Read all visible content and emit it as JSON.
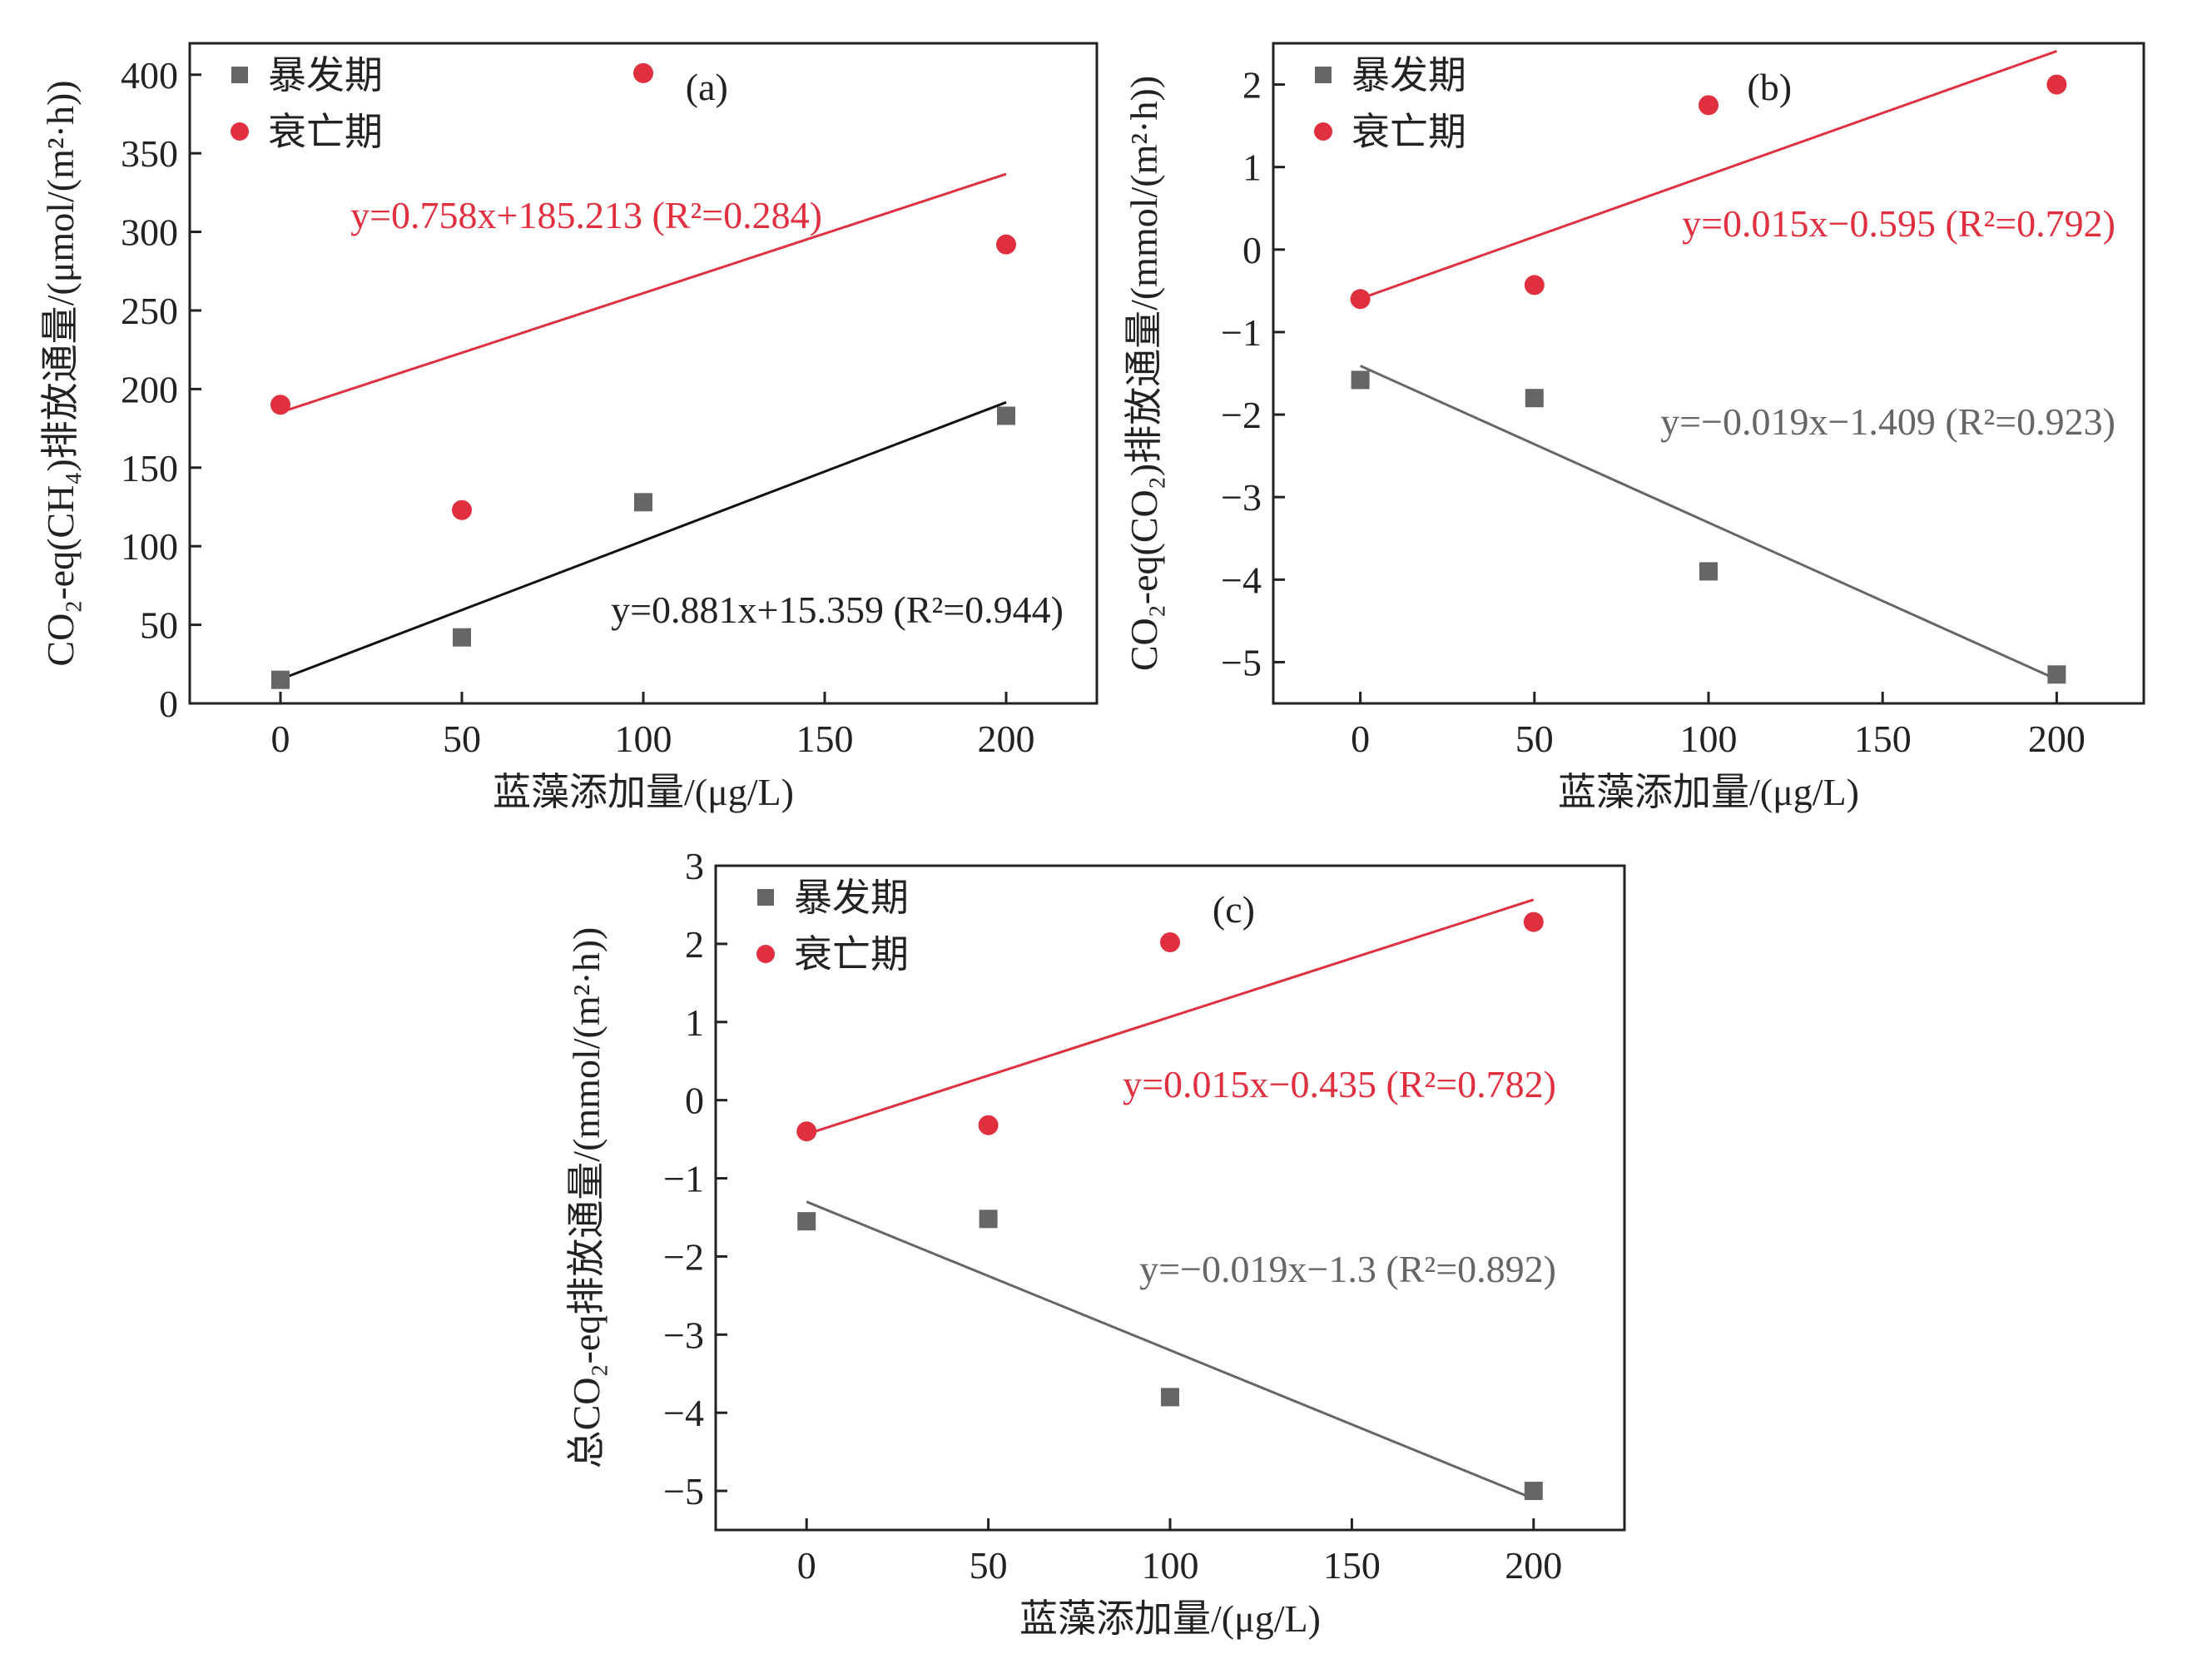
{
  "colors": {
    "bloom": "#666666",
    "decline": "#e03040",
    "text": "#222222"
  },
  "chart_data": [
    {
      "type": "scatter",
      "panel_label": "(a)",
      "xlabel": "蓝藻添加量/(μg/L)",
      "ylabel": "CO₂-eq(CH₄)排放通量/(μmol/(m²·h))",
      "xlim": [
        -25,
        225
      ],
      "ylim": [
        0,
        420
      ],
      "xticks": [
        "0",
        "50",
        "100",
        "150",
        "200"
      ],
      "yticks": [
        "0",
        "50",
        "100",
        "150",
        "200",
        "250",
        "300",
        "350",
        "400"
      ],
      "grid": false,
      "legend_position": "top-left",
      "series": [
        {
          "name": "暴发期",
          "marker": "square",
          "color": "#666666",
          "fit_color": "#111111",
          "points": [
            [
              0,
              15
            ],
            [
              50,
              42
            ],
            [
              100,
              128
            ],
            [
              200,
              183
            ]
          ],
          "fit": {
            "slope": 0.881,
            "intercept": 15.359,
            "label": "y=0.881x+15.359 (R²=0.944)"
          }
        },
        {
          "name": "衰亡期",
          "marker": "circle",
          "color": "#e03040",
          "fit_color": "#e03040",
          "points": [
            [
              0,
              190
            ],
            [
              50,
              123
            ],
            [
              100,
              401
            ],
            [
              200,
              292
            ]
          ],
          "fit": {
            "slope": 0.758,
            "intercept": 185.213,
            "label": "y=0.758x+185.213 (R²=0.284)"
          }
        }
      ]
    },
    {
      "type": "scatter",
      "panel_label": "(b)",
      "xlabel": "蓝藻添加量/(μg/L)",
      "ylabel": "CO₂-eq(CO₂)排放通量/(mmol/(m²·h))",
      "xlim": [
        -25,
        225
      ],
      "ylim": [
        -5.5,
        2.5
      ],
      "xticks": [
        "0",
        "50",
        "100",
        "150",
        "200"
      ],
      "yticks": [
        "-5",
        "-4",
        "-3",
        "-2",
        "-1",
        "0",
        "1",
        "2"
      ],
      "grid": false,
      "legend_position": "top-left",
      "series": [
        {
          "name": "暴发期",
          "marker": "square",
          "color": "#666666",
          "fit_color": "#666666",
          "points": [
            [
              0,
              -1.58
            ],
            [
              50,
              -1.8
            ],
            [
              100,
              -3.9
            ],
            [
              200,
              -5.15
            ]
          ],
          "fit": {
            "slope": -0.019,
            "intercept": -1.409,
            "label": "y=−0.019x−1.409 (R²=0.923)"
          }
        },
        {
          "name": "衰亡期",
          "marker": "circle",
          "color": "#e03040",
          "fit_color": "#e03040",
          "points": [
            [
              0,
              -0.6
            ],
            [
              50,
              -0.43
            ],
            [
              100,
              1.75
            ],
            [
              200,
              2.0
            ]
          ],
          "fit": {
            "slope": 0.015,
            "intercept": -0.595,
            "label": "y=0.015x−0.595 (R²=0.792)"
          }
        }
      ]
    },
    {
      "type": "scatter",
      "panel_label": "(c)",
      "xlabel": "蓝藻添加量/(μg/L)",
      "ylabel": "总CO₂-eq排放通量/(mmol/(m²·h))",
      "xlim": [
        -25,
        225
      ],
      "ylim": [
        -5.5,
        3
      ],
      "xticks": [
        "0",
        "50",
        "100",
        "150",
        "200"
      ],
      "yticks": [
        "-5",
        "-4",
        "-3",
        "-2",
        "-1",
        "0",
        "1",
        "2",
        "3"
      ],
      "grid": false,
      "legend_position": "top-left",
      "series": [
        {
          "name": "暴发期",
          "marker": "square",
          "color": "#666666",
          "fit_color": "#666666",
          "points": [
            [
              0,
              -1.55
            ],
            [
              50,
              -1.52
            ],
            [
              100,
              -3.8
            ],
            [
              200,
              -5.0
            ]
          ],
          "fit": {
            "slope": -0.019,
            "intercept": -1.3,
            "label": "y=−0.019x−1.3 (R²=0.892)"
          }
        },
        {
          "name": "衰亡期",
          "marker": "circle",
          "color": "#e03040",
          "fit_color": "#e03040",
          "points": [
            [
              0,
              -0.4
            ],
            [
              50,
              -0.32
            ],
            [
              100,
              2.02
            ],
            [
              200,
              2.28
            ]
          ],
          "fit": {
            "slope": 0.015,
            "intercept": -0.435,
            "label": "y=0.015x−0.435 (R²=0.782)"
          }
        }
      ]
    }
  ]
}
